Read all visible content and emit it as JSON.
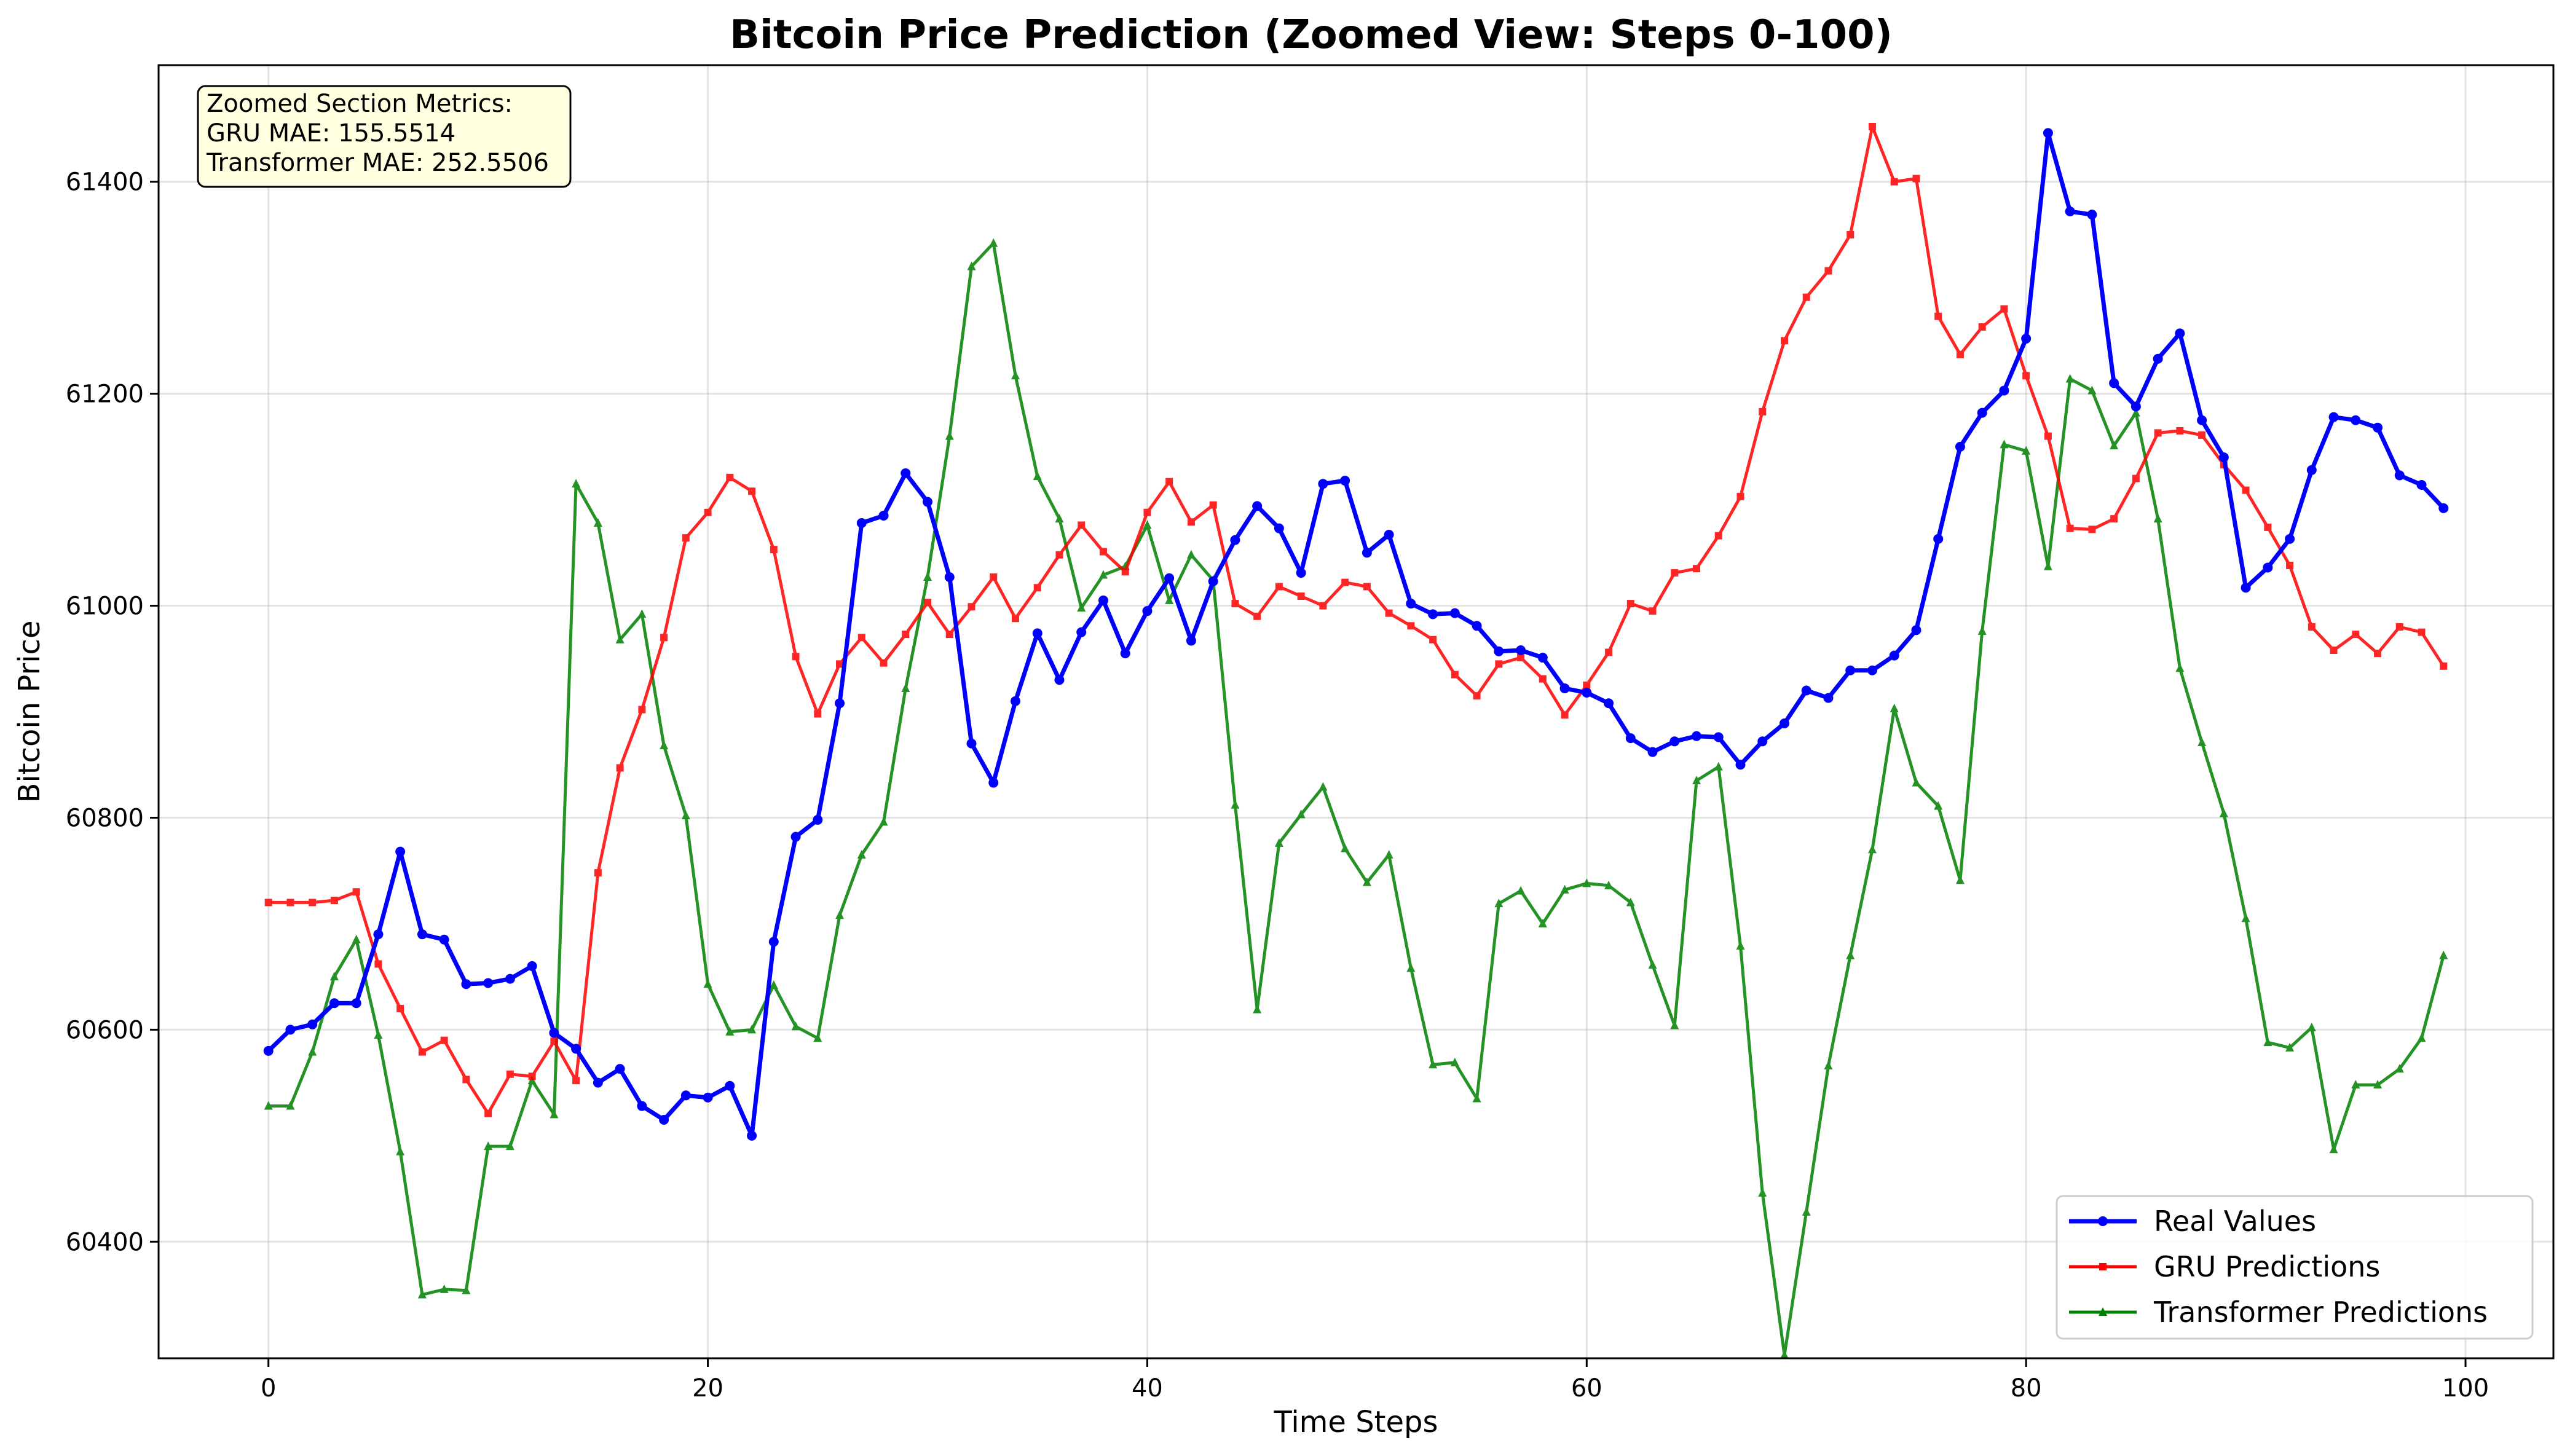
{
  "chart_data": {
    "type": "line",
    "title": "Bitcoin Price Prediction (Zoomed View: Steps 0-100)",
    "xlabel": "Time Steps",
    "ylabel": "Bitcoin Price",
    "xlim": [
      -5,
      104
    ],
    "ylim": [
      60290,
      61510
    ],
    "xticks": [
      0,
      20,
      40,
      60,
      80,
      100
    ],
    "yticks": [
      60400,
      60600,
      60800,
      61000,
      61200,
      61400
    ],
    "grid": true,
    "legend_position": "bottom-right",
    "annotation": {
      "lines": [
        "Zoomed Section Metrics:",
        "GRU MAE: 155.5514",
        "Transformer MAE: 252.5506"
      ],
      "position": "top-left",
      "background": "#ffffe0"
    },
    "series": [
      {
        "name": "Real Values",
        "color": "#0000ff",
        "marker": "circle",
        "values": [
          60580,
          60600,
          60605,
          60625,
          60625,
          60690,
          60768,
          60690,
          60685,
          60643,
          60644,
          60648,
          60660,
          60597,
          60582,
          60550,
          60563,
          60528,
          60515,
          60538,
          60536,
          60547,
          60500,
          60683,
          60782,
          60798,
          60908,
          61078,
          61085,
          61125,
          61098,
          61027,
          60870,
          60833,
          60910,
          60974,
          60930,
          60975,
          61005,
          60955,
          60995,
          61026,
          60967,
          61023,
          61062,
          61094,
          61073,
          61031,
          61115,
          61118,
          61050,
          61067,
          61002,
          60992,
          60993,
          60981,
          60957,
          60958,
          60951,
          60922,
          60918,
          60908,
          60875,
          60862,
          60872,
          60877,
          60876,
          60850,
          60872,
          60889,
          60920,
          60913,
          60939,
          60939,
          60953,
          60977,
          61063,
          61150,
          61182,
          61203,
          61252,
          61446,
          61372,
          61369,
          61210,
          61188,
          61233,
          61257,
          61175,
          61140,
          61017,
          61036,
          61063,
          61128,
          61178,
          61175,
          61168,
          61123,
          61114,
          61092
        ]
      },
      {
        "name": "GRU Predictions",
        "color": "#ff0000",
        "marker": "square",
        "values": [
          60720,
          60720,
          60720,
          60722,
          60730,
          60662,
          60620,
          60579,
          60590,
          60553,
          60521,
          60558,
          60556,
          60589,
          60552,
          60748,
          60847,
          60902,
          60970,
          61064,
          61088,
          61121,
          61108,
          61053,
          60952,
          60898,
          60945,
          60970,
          60946,
          60973,
          61003,
          60973,
          60999,
          61027,
          60988,
          61017,
          61048,
          61076,
          61051,
          61032,
          61088,
          61117,
          61079,
          61095,
          61002,
          60990,
          61018,
          61009,
          61000,
          61022,
          61018,
          60993,
          60981,
          60968,
          60935,
          60915,
          60945,
          60951,
          60931,
          60897,
          60925,
          60956,
          61002,
          60995,
          61031,
          61035,
          61066,
          61103,
          61183,
          61250,
          61291,
          61316,
          61350,
          61452,
          61400,
          61403,
          61273,
          61237,
          61263,
          61280,
          61217,
          61160,
          61073,
          61072,
          61082,
          61120,
          61163,
          61165,
          61161,
          61133,
          61109,
          61074,
          61038,
          60980,
          60958,
          60973,
          60955,
          60980,
          60975,
          60943
        ]
      },
      {
        "name": "Transformer Predictions",
        "color": "#008000",
        "marker": "triangle",
        "values": [
          60528,
          60528,
          60579,
          60650,
          60685,
          60595,
          60485,
          60350,
          60355,
          60354,
          60490,
          60490,
          60552,
          60520,
          61115,
          61078,
          60968,
          60992,
          60868,
          60802,
          60643,
          60598,
          60600,
          60642,
          60603,
          60592,
          60708,
          60765,
          60796,
          60922,
          61027,
          61160,
          61320,
          61342,
          61217,
          61122,
          61082,
          60998,
          61029,
          61037,
          61076,
          61005,
          61048,
          61024,
          60812,
          60619,
          60776,
          60803,
          60829,
          60771,
          60739,
          60765,
          60658,
          60567,
          60569,
          60535,
          60719,
          60731,
          60700,
          60732,
          60738,
          60736,
          60720,
          60661,
          60604,
          60835,
          60848,
          60679,
          60446,
          60293,
          60428,
          60566,
          60670,
          60770,
          60903,
          60833,
          60811,
          60741,
          60976,
          61152,
          61146,
          61037,
          61214,
          61203,
          61151,
          61182,
          61082,
          60941,
          60871,
          60804,
          60705,
          60588,
          60583,
          60602,
          60487,
          60548,
          60548,
          60563,
          60592,
          60670
        ]
      }
    ]
  }
}
